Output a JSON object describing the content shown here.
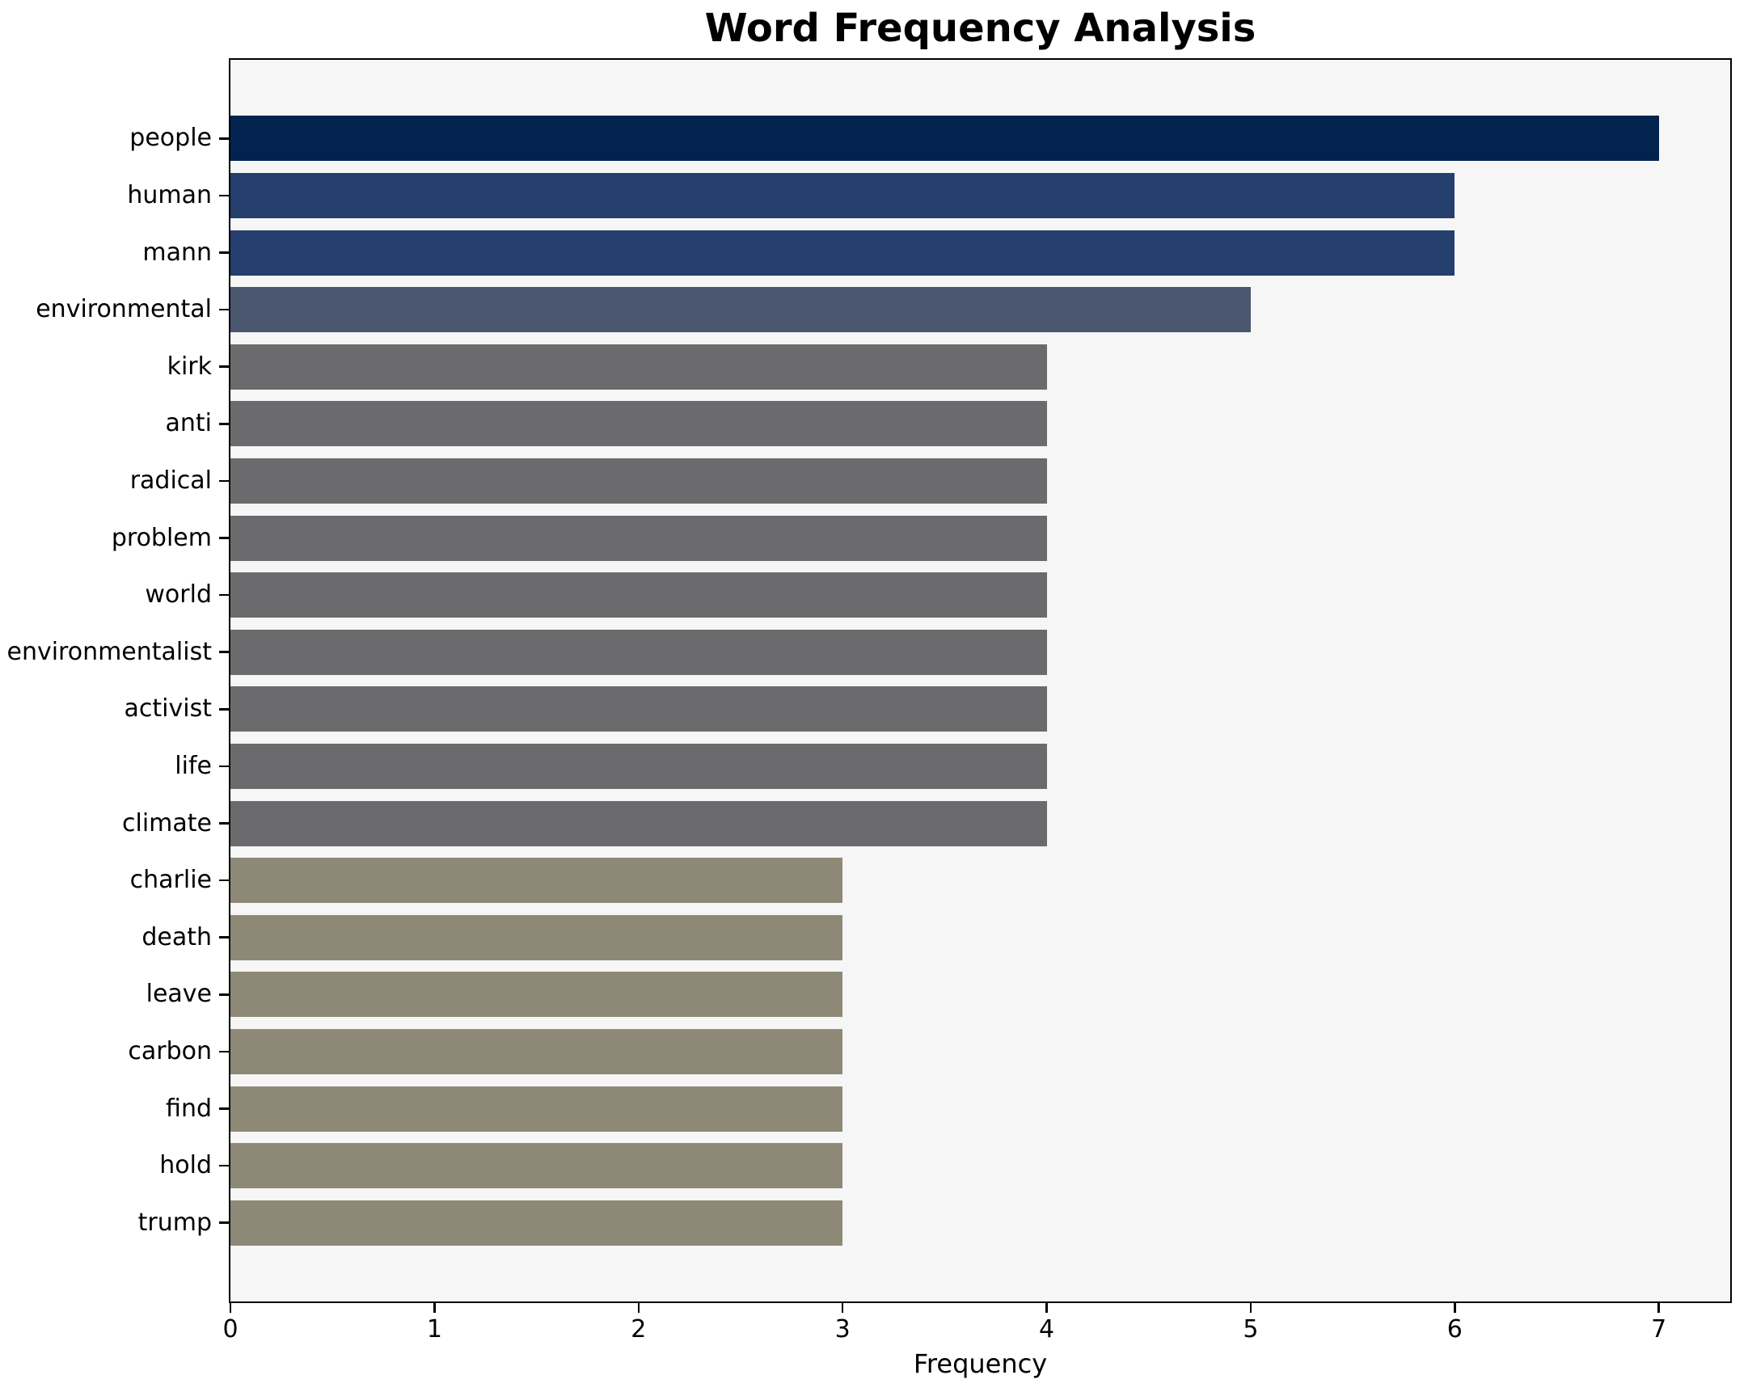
{
  "chart_data": {
    "type": "bar",
    "orientation": "horizontal",
    "title": "Word Frequency Analysis",
    "xlabel": "Frequency",
    "ylabel": "",
    "categories": [
      "people",
      "human",
      "mann",
      "environmental",
      "kirk",
      "anti",
      "radical",
      "problem",
      "world",
      "environmentalist",
      "activist",
      "life",
      "climate",
      "charlie",
      "death",
      "leave",
      "carbon",
      "find",
      "hold",
      "trump"
    ],
    "values": [
      7,
      6,
      6,
      5,
      4,
      4,
      4,
      4,
      4,
      4,
      4,
      4,
      4,
      3,
      3,
      3,
      3,
      3,
      3,
      3
    ],
    "bar_colors": [
      "#02234d",
      "#253f6c",
      "#253f6c",
      "#4b566f",
      "#6b6b6e",
      "#6b6b6e",
      "#6b6b6e",
      "#6b6b6e",
      "#6b6b6e",
      "#6b6b6e",
      "#6b6b6e",
      "#6b6b6e",
      "#6b6b6e",
      "#8e8977",
      "#8e8977",
      "#8e8977",
      "#8e8977",
      "#8e8977",
      "#8e8977",
      "#8e8977"
    ],
    "xlim": [
      0,
      7.35
    ],
    "xticks": [
      0,
      1,
      2,
      3,
      4,
      5,
      6,
      7
    ],
    "grid": false,
    "legend": null,
    "plot_background": "#f6f6f6",
    "axis_color": "#000000"
  }
}
